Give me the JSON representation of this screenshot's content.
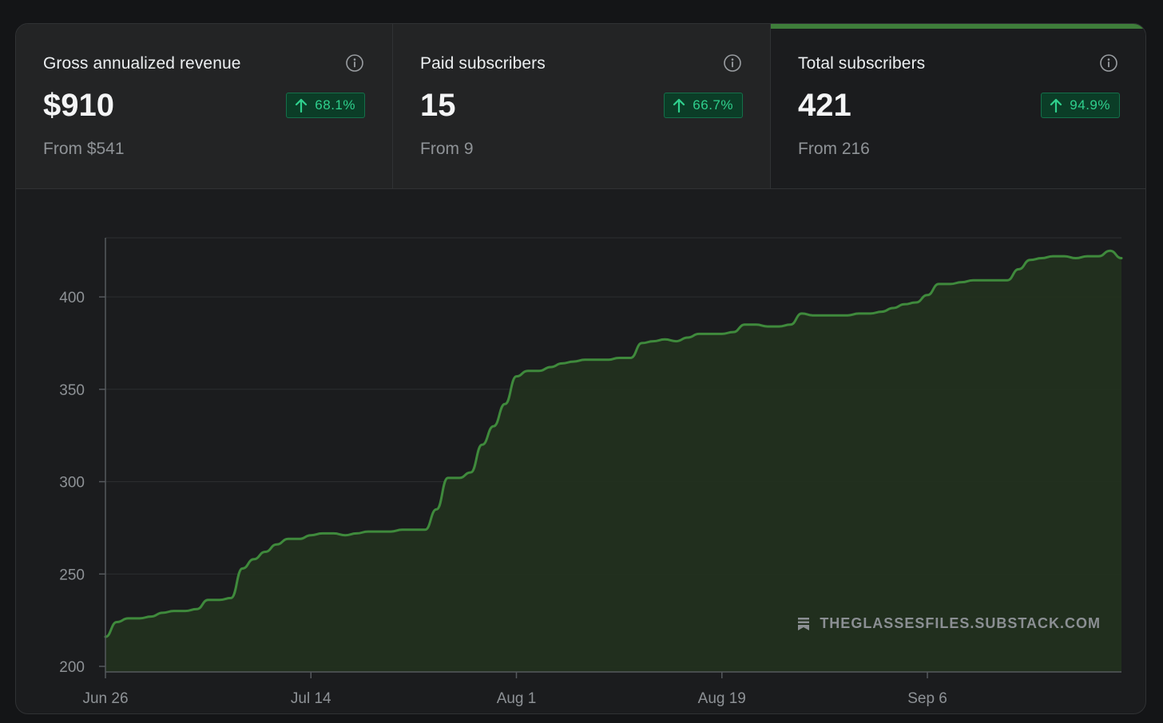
{
  "stats": [
    {
      "label": "Gross annualized revenue",
      "value": "$910",
      "change": "68.1%",
      "from": "From $541",
      "active": false
    },
    {
      "label": "Paid subscribers",
      "value": "15",
      "change": "66.7%",
      "from": "From 9",
      "active": false
    },
    {
      "label": "Total subscribers",
      "value": "421",
      "change": "94.9%",
      "from": "From 216",
      "active": true
    }
  ],
  "colors": {
    "accent_line": "#3f8a3c",
    "area_fill": "#22301f",
    "badge_text": "#2fd08d",
    "badge_bg": "#0b3d27"
  },
  "watermark": "THEGLASSESFILES.SUBSTACK.COM",
  "chart_data": {
    "type": "area",
    "title": "Total subscribers",
    "xlabel": "",
    "ylabel": "",
    "xlim": [
      0,
      89
    ],
    "ylim": [
      197,
      432
    ],
    "y_ticks": [
      200,
      250,
      300,
      350,
      400
    ],
    "x_ticks": [
      {
        "day": 0,
        "label": "Jun 26"
      },
      {
        "day": 18,
        "label": "Jul 14"
      },
      {
        "day": 36,
        "label": "Aug 1"
      },
      {
        "day": 54,
        "label": "Aug 19"
      },
      {
        "day": 72,
        "label": "Sep 6"
      }
    ],
    "grid": true,
    "series": [
      {
        "name": "Total subscribers",
        "x": [
          0,
          1,
          2,
          3,
          4,
          5,
          6,
          7,
          8,
          9,
          10,
          11,
          12,
          13,
          14,
          15,
          16,
          17,
          18,
          19,
          20,
          21,
          22,
          23,
          24,
          25,
          26,
          27,
          28,
          29,
          30,
          31,
          32,
          33,
          34,
          35,
          36,
          37,
          38,
          39,
          40,
          41,
          42,
          43,
          44,
          45,
          46,
          47,
          48,
          49,
          50,
          51,
          52,
          53,
          54,
          55,
          56,
          57,
          58,
          59,
          60,
          61,
          62,
          63,
          64,
          65,
          66,
          67,
          68,
          69,
          70,
          71,
          72,
          73,
          74,
          75,
          76,
          77,
          78,
          79,
          80,
          81,
          82,
          83,
          84,
          85,
          86,
          87,
          88,
          89
        ],
        "values": [
          216,
          224,
          226,
          226,
          227,
          229,
          230,
          230,
          231,
          236,
          236,
          237,
          253,
          258,
          262,
          266,
          269,
          269,
          271,
          272,
          272,
          271,
          272,
          273,
          273,
          273,
          274,
          274,
          274,
          285,
          302,
          302,
          305,
          320,
          330,
          342,
          357,
          360,
          360,
          362,
          364,
          365,
          366,
          366,
          366,
          367,
          367,
          375,
          376,
          377,
          376,
          378,
          380,
          380,
          380,
          381,
          385,
          385,
          384,
          384,
          385,
          391,
          390,
          390,
          390,
          390,
          391,
          391,
          392,
          394,
          396,
          397,
          401,
          407,
          407,
          408,
          409,
          409,
          409,
          409,
          415,
          420,
          421,
          422,
          422,
          421,
          422,
          422,
          425,
          421
        ]
      }
    ]
  }
}
